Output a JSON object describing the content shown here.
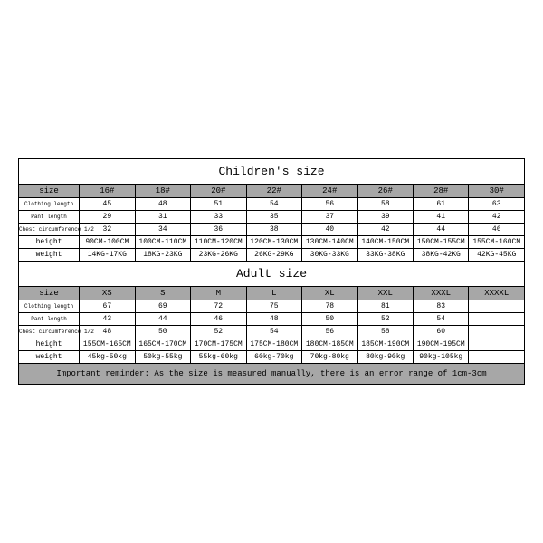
{
  "children": {
    "title": "Children's size",
    "row_labels": [
      "size",
      "Clothing length",
      "Pant length",
      "Chest circumference 1/2",
      "height",
      "weight"
    ],
    "sizes": [
      "16#",
      "18#",
      "20#",
      "22#",
      "24#",
      "26#",
      "28#",
      "30#"
    ],
    "cloth": [
      "45",
      "48",
      "51",
      "54",
      "56",
      "58",
      "61",
      "63"
    ],
    "pant": [
      "29",
      "31",
      "33",
      "35",
      "37",
      "39",
      "41",
      "42"
    ],
    "chest": [
      "32",
      "34",
      "36",
      "38",
      "40",
      "42",
      "44",
      "46"
    ],
    "height": [
      "90CM-100CM",
      "100CM-110CM",
      "110CM-120CM",
      "120CM-130CM",
      "130CM-140CM",
      "140CM-150CM",
      "150CM-155CM",
      "155CM-160CM"
    ],
    "weight": [
      "14KG-17KG",
      "18KG-23KG",
      "23KG-26KG",
      "26KG-29KG",
      "30KG-33KG",
      "33KG-38KG",
      "38KG-42KG",
      "42KG-45KG"
    ]
  },
  "adult": {
    "title": "Adult size",
    "row_labels": [
      "size",
      "Clothing length",
      "Pant length",
      "Chest circumference 1/2",
      "height",
      "weight"
    ],
    "sizes": [
      "XS",
      "S",
      "M",
      "L",
      "XL",
      "XXL",
      "XXXL",
      "XXXXL"
    ],
    "cloth": [
      "67",
      "69",
      "72",
      "75",
      "78",
      "81",
      "83",
      ""
    ],
    "pant": [
      "43",
      "44",
      "46",
      "48",
      "50",
      "52",
      "54",
      ""
    ],
    "chest": [
      "48",
      "50",
      "52",
      "54",
      "56",
      "58",
      "60",
      ""
    ],
    "height": [
      "155CM-165CM",
      "165CM-170CM",
      "170CM-175CM",
      "175CM-180CM",
      "180CM-185CM",
      "185CM-190CM",
      "190CM-195CM",
      ""
    ],
    "weight": [
      "45kg-50kg",
      "50kg-55kg",
      "55kg-60kg",
      "60kg-70kg",
      "70kg-80kg",
      "80kg-90kg",
      "90kg-105kg",
      ""
    ]
  },
  "reminder": "Important reminder: As the size is measured manually, there is an error range of 1cm-3cm",
  "style": {
    "header_bg": "#a7a7a7",
    "border_color": "#000000",
    "font_family": "Courier New, monospace",
    "title_fontsize": 13,
    "header_fontsize": 9,
    "data_fontsize": 8,
    "small_label_fontsize": 6,
    "reminder_fontsize": 9
  }
}
